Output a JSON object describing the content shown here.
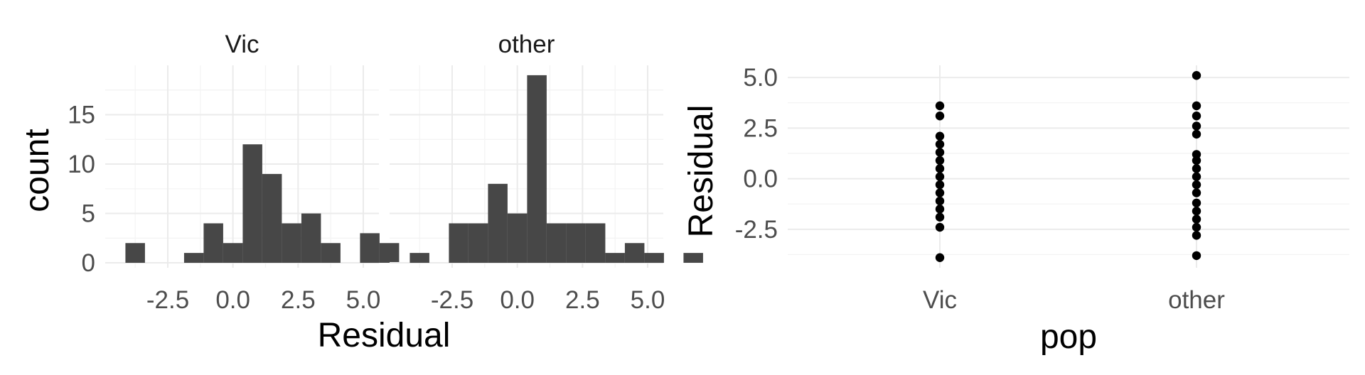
{
  "chart_data": [
    {
      "type": "bar",
      "subtype": "histogram",
      "facets": [
        "Vic",
        "other"
      ],
      "bin_width": 0.75,
      "bin_start": -4.125,
      "series": [
        {
          "facet": "Vic",
          "counts": [
            2,
            0,
            0,
            1,
            4,
            2,
            12,
            9,
            4,
            5,
            2,
            0,
            3,
            2,
            0,
            0,
            0,
            0,
            0,
            0,
            0,
            0,
            0,
            0
          ]
        },
        {
          "facet": "other",
          "counts": [
            1,
            0,
            4,
            4,
            8,
            5,
            19,
            4,
            4,
            4,
            1,
            2,
            1,
            0,
            1,
            0,
            0,
            0,
            0,
            0,
            0,
            0,
            0,
            0
          ]
        }
      ],
      "xlabel": "Residual",
      "ylabel": "count",
      "xlim": [
        -4.9,
        5.6
      ],
      "ylim": [
        -0.5,
        20
      ],
      "x_ticks": [
        "-2.5",
        "0.0",
        "2.5",
        "5.0"
      ],
      "x_tick_values": [
        -2.5,
        0,
        2.5,
        5
      ],
      "y_ticks": [
        "0",
        "5",
        "10",
        "15"
      ],
      "y_tick_values": [
        0,
        5,
        10,
        15
      ],
      "bar_color": "#474747",
      "grid": true
    },
    {
      "type": "scatter",
      "subtype": "dot",
      "categories": [
        "Vic",
        "other"
      ],
      "series": [
        {
          "category": "Vic",
          "values": [
            3.6,
            3.1,
            2.1,
            1.7,
            1.3,
            0.9,
            0.5,
            0.1,
            -0.3,
            -0.7,
            -1.1,
            -1.5,
            -1.9,
            -2.4,
            -3.9
          ]
        },
        {
          "category": "other",
          "values": [
            5.1,
            3.6,
            3.1,
            2.6,
            2.2,
            1.2,
            0.9,
            0.5,
            0.1,
            -0.3,
            -0.7,
            -1.2,
            -1.6,
            -2.0,
            -2.4,
            -2.8,
            -3.8
          ]
        }
      ],
      "xlabel": "pop",
      "ylabel": "Residual",
      "ylim": [
        -4.4,
        5.6
      ],
      "y_ticks": [
        "5.0",
        "2.5",
        "0.0",
        "-2.5"
      ],
      "y_tick_values": [
        5,
        2.5,
        0,
        -2.5
      ],
      "point_color": "#000000",
      "grid": true
    }
  ]
}
